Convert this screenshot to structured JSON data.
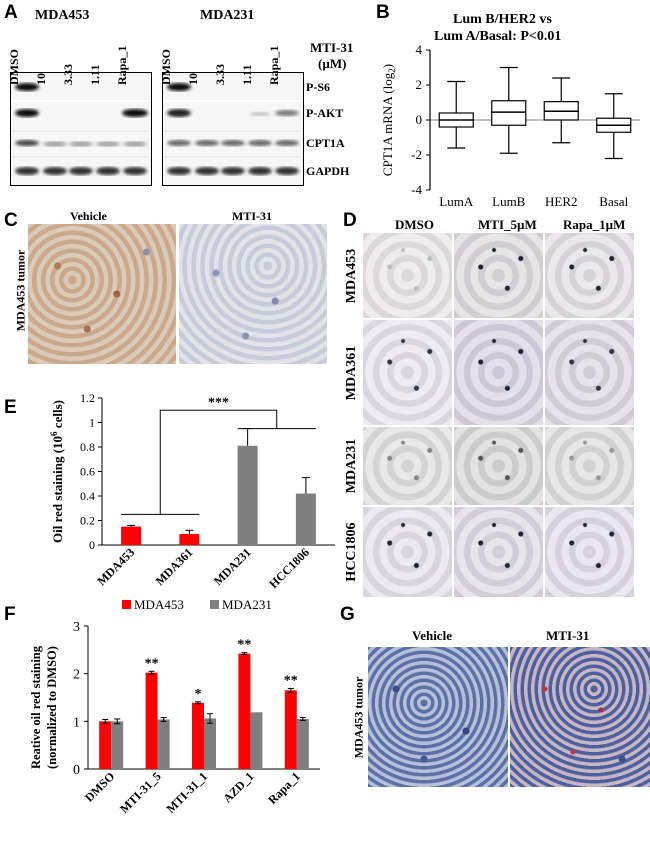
{
  "panels": {
    "A": {
      "letter": "A",
      "groups": [
        "MDA453",
        "MDA231"
      ],
      "lanes": [
        "DMSO",
        "10",
        "3.33",
        "1.11",
        "Rapa_1"
      ],
      "treatment_label": "MTI-31",
      "unit": "(µM)",
      "rows": [
        "P-S6",
        "P-AKT",
        "CPT1A",
        "GAPDH"
      ]
    },
    "B": {
      "letter": "B",
      "title_line1": "Lum B/HER2 vs",
      "title_line2": "Lum A/Basal: P<0.01",
      "ylabel": "CPT1A mRNA (log",
      "ylabel_sub": "2",
      "ylabel_end": ")"
    },
    "C": {
      "letter": "C",
      "cols": [
        "Vehicle",
        "MTI-31"
      ],
      "side": "MDA453 tumor"
    },
    "D": {
      "letter": "D",
      "cols": [
        "DMSO",
        "MTI_5µM",
        "Rapa_1µM"
      ],
      "rows": [
        "MDA453",
        "MDA361",
        "MDA231",
        "HCC1806"
      ]
    },
    "E": {
      "letter": "E",
      "ylabel": "Oil red staining (10",
      "ylabel_sup": "6",
      "ylabel_end": " cells)",
      "sig": "***"
    },
    "F": {
      "letter": "F",
      "ylabel_line1": "Reative oil red staining",
      "ylabel_line2": "(normalized to DMSO)"
    },
    "G": {
      "letter": "G",
      "cols": [
        "Vehicle",
        "MTI-31"
      ],
      "side": "MDA453 tumor"
    }
  },
  "chart_data": [
    {
      "panel": "B",
      "type": "box",
      "categories": [
        "LumA",
        "LumB",
        "HER2",
        "Basal"
      ],
      "ylim": [
        -4,
        4
      ],
      "yticks": [
        -4,
        -2,
        0,
        2,
        4
      ],
      "boxes": [
        {
          "min": -1.6,
          "q1": -0.4,
          "median": 0.0,
          "q3": 0.4,
          "max": 2.2
        },
        {
          "min": -1.9,
          "q1": -0.3,
          "median": 0.45,
          "q3": 1.1,
          "max": 3.0
        },
        {
          "min": -1.3,
          "q1": 0.0,
          "median": 0.5,
          "q3": 1.05,
          "max": 2.4
        },
        {
          "min": -2.2,
          "q1": -0.7,
          "median": -0.3,
          "q3": 0.1,
          "max": 1.5
        }
      ]
    },
    {
      "panel": "E",
      "type": "bar",
      "categories": [
        "MDA453",
        "MDA361",
        "MDA231",
        "HCC1806"
      ],
      "values": [
        0.15,
        0.09,
        0.81,
        0.42
      ],
      "errors": [
        0.01,
        0.03,
        0.14,
        0.13
      ],
      "colors": [
        "#ff0000",
        "#ff0000",
        "#7f7f7f",
        "#7f7f7f"
      ],
      "ylim": [
        0,
        1.2
      ],
      "yticks": [
        0,
        0.2,
        0.4,
        0.6,
        0.8,
        1,
        1.2
      ]
    },
    {
      "panel": "F",
      "type": "bar",
      "categories": [
        "DMSO",
        "MTI-31_5",
        "MTI-31_1",
        "AZD_1",
        "Rapa_1"
      ],
      "series": [
        {
          "name": "MDA453",
          "color": "#ff0000",
          "values": [
            1.0,
            2.02,
            1.39,
            2.42,
            1.65
          ],
          "errors": [
            0.04,
            0.03,
            0.02,
            0.02,
            0.04
          ],
          "sig": [
            "",
            "**",
            "*",
            "**",
            "**"
          ]
        },
        {
          "name": "MDA231",
          "color": "#7f7f7f",
          "values": [
            1.0,
            1.04,
            1.06,
            1.19,
            1.05
          ],
          "errors": [
            0.05,
            0.04,
            0.1,
            0.0,
            0.03
          ],
          "sig": [
            "",
            "",
            "",
            "",
            ""
          ]
        }
      ],
      "ylim": [
        0,
        3
      ],
      "yticks": [
        0,
        1,
        2,
        3
      ],
      "legend": "top"
    }
  ]
}
